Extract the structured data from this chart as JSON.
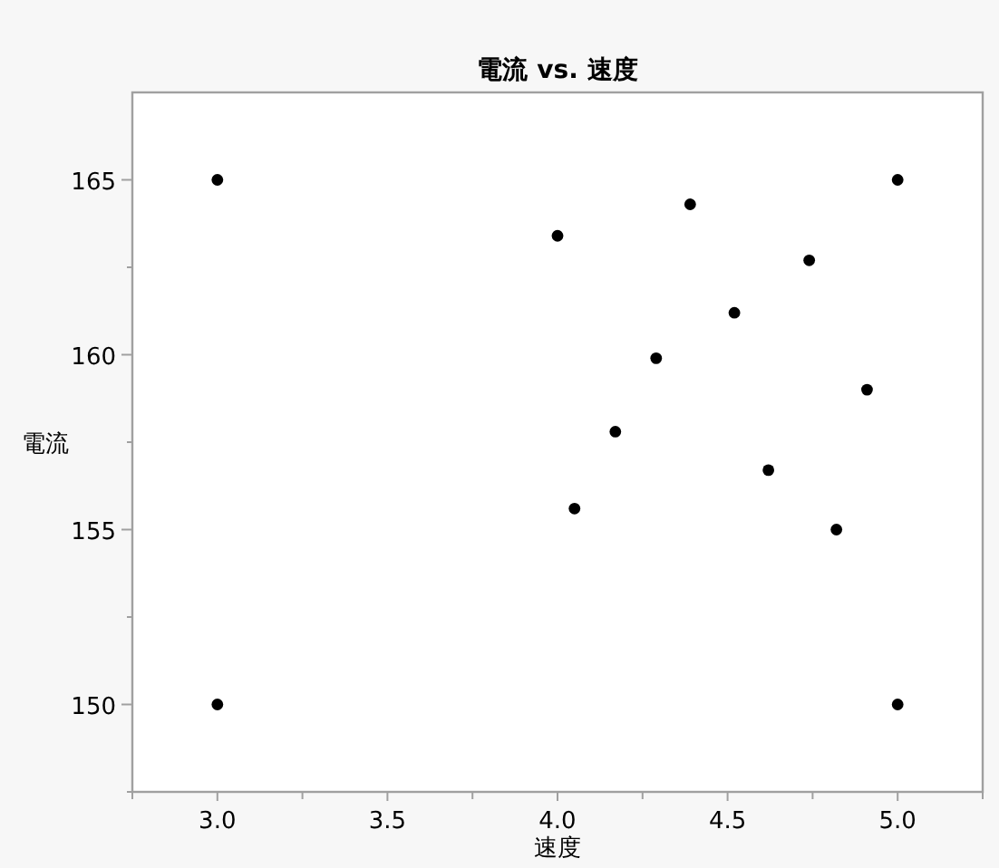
{
  "chart_data": {
    "type": "scatter",
    "title": "電流 vs. 速度",
    "xlabel": "速度",
    "ylabel": "電流",
    "x": [
      3.0,
      3.0,
      4.0,
      4.05,
      4.17,
      4.29,
      4.39,
      4.52,
      4.62,
      4.74,
      4.82,
      4.91,
      5.0,
      5.0
    ],
    "values": [
      165,
      150,
      163.4,
      155.6,
      157.8,
      159.9,
      164.3,
      161.2,
      156.7,
      162.7,
      155.0,
      159.0,
      165,
      150
    ],
    "color": "#000000",
    "marker": "circle",
    "xlim": [
      2.75,
      5.25
    ],
    "xticks": [
      {
        "value": 2.75,
        "label": null
      },
      {
        "value": 3,
        "label": "3.0"
      },
      {
        "value": 3.25,
        "label": null
      },
      {
        "value": 3.5,
        "label": "3.5"
      },
      {
        "value": 3.75,
        "label": null
      },
      {
        "value": 4,
        "label": "4.0"
      },
      {
        "value": 4.25,
        "label": null
      },
      {
        "value": 4.5,
        "label": "4.5"
      },
      {
        "value": 4.75,
        "label": null
      },
      {
        "value": 5,
        "label": "5.0"
      },
      {
        "value": 5.25,
        "label": null
      }
    ],
    "ylim": [
      147.5,
      167.5
    ],
    "yticks": [
      {
        "value": 147.5,
        "label": null
      },
      150,
      {
        "value": 152.5,
        "label": null
      },
      155,
      {
        "value": 157.5,
        "label": null
      },
      160,
      {
        "value": 162.5,
        "label": null
      },
      165
    ]
  }
}
